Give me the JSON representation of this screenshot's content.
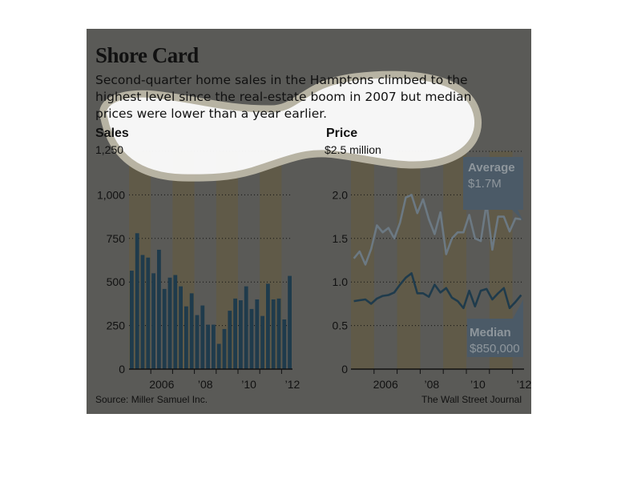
{
  "title": "Shore Card",
  "subtitle": "Second-quarter home sales in the Hamptons climbed to the highest level since the real-estate boom in 2007 but median prices were lower than a year earlier.",
  "source": "Source: Miller Samuel Inc.",
  "credit": "The Wall Street Journal",
  "colors": {
    "background": "#5a5a57",
    "year_band": "#605a48",
    "bars": "#1f3b4c",
    "average_line": "#6c7983",
    "median_line": "#1f3b4c",
    "callout": "#4b5a67",
    "callout_text": "#8e969c"
  },
  "chart_data": [
    {
      "type": "bar",
      "title": "Sales",
      "top_tick_label": "1,250",
      "ylim": [
        0,
        1250
      ],
      "yticks": [
        0,
        250,
        500,
        750,
        1000,
        1250
      ],
      "ytick_labels": [
        "0",
        "250",
        "500",
        "750",
        "1,000",
        "1,250"
      ],
      "xtick_labels": [
        "2006",
        "’08",
        "’10",
        "’12"
      ],
      "categories": [
        "2005Q1",
        "2005Q2",
        "2005Q3",
        "2005Q4",
        "2006Q1",
        "2006Q2",
        "2006Q3",
        "2006Q4",
        "2007Q1",
        "2007Q2",
        "2007Q3",
        "2007Q4",
        "2008Q1",
        "2008Q2",
        "2008Q3",
        "2008Q4",
        "2009Q1",
        "2009Q2",
        "2009Q3",
        "2009Q4",
        "2010Q1",
        "2010Q2",
        "2010Q3",
        "2010Q4",
        "2011Q1",
        "2011Q2",
        "2011Q3",
        "2011Q4",
        "2012Q1",
        "2012Q2"
      ],
      "values": [
        565,
        780,
        655,
        640,
        550,
        685,
        460,
        525,
        540,
        475,
        360,
        435,
        310,
        365,
        255,
        255,
        145,
        230,
        335,
        405,
        395,
        475,
        345,
        400,
        305,
        490,
        400,
        405,
        285,
        535
      ],
      "grid": "dotted horizontal"
    },
    {
      "type": "line",
      "title": "Price",
      "top_tick_label": "$2.5 million",
      "ylim": [
        0,
        2.5
      ],
      "yticks": [
        0,
        0.5,
        1.0,
        1.5,
        2.0,
        2.5
      ],
      "ytick_labels": [
        "0",
        "0.5",
        "1.0",
        "1.5",
        "2.0",
        "$2.5 million"
      ],
      "xtick_labels": [
        "2006",
        "’08",
        "’10",
        "’12"
      ],
      "categories": [
        "2005Q1",
        "2005Q2",
        "2005Q3",
        "2005Q4",
        "2006Q1",
        "2006Q2",
        "2006Q3",
        "2006Q4",
        "2007Q1",
        "2007Q2",
        "2007Q3",
        "2007Q4",
        "2008Q1",
        "2008Q2",
        "2008Q3",
        "2008Q4",
        "2009Q1",
        "2009Q2",
        "2009Q3",
        "2009Q4",
        "2010Q1",
        "2010Q2",
        "2010Q3",
        "2010Q4",
        "2011Q1",
        "2011Q2",
        "2011Q3",
        "2011Q4",
        "2012Q1",
        "2012Q2"
      ],
      "series": [
        {
          "name": "Average",
          "callout_label": "Average",
          "callout_value": "$1.7M",
          "values": [
            1.27,
            1.35,
            1.2,
            1.38,
            1.65,
            1.57,
            1.62,
            1.5,
            1.68,
            1.97,
            2.0,
            1.79,
            1.95,
            1.72,
            1.55,
            1.8,
            1.32,
            1.5,
            1.57,
            1.57,
            1.77,
            1.5,
            1.47,
            1.9,
            1.37,
            1.75,
            1.75,
            1.58,
            1.73,
            1.72
          ]
        },
        {
          "name": "Median",
          "callout_label": "Median",
          "callout_value": "$850,000",
          "values": [
            0.78,
            0.79,
            0.8,
            0.75,
            0.81,
            0.84,
            0.85,
            0.88,
            0.97,
            1.05,
            1.1,
            0.87,
            0.87,
            0.83,
            0.97,
            0.88,
            0.93,
            0.82,
            0.78,
            0.7,
            0.9,
            0.72,
            0.9,
            0.92,
            0.8,
            0.87,
            0.93,
            0.7,
            0.77,
            0.85
          ]
        }
      ],
      "grid": "dotted horizontal"
    }
  ]
}
